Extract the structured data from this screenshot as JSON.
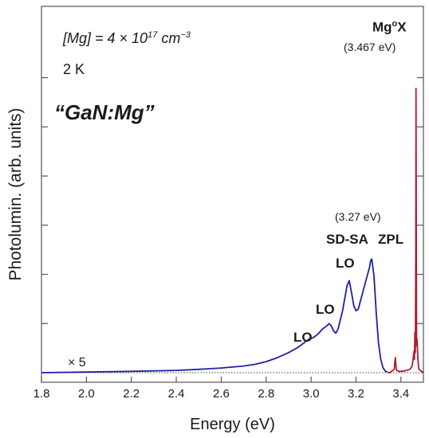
{
  "chart_data": {
    "type": "line",
    "xlabel": "Energy (eV)",
    "ylabel": "Photolumin. (arb. units)",
    "xlim": [
      1.8,
      3.5
    ],
    "ylim": [
      0,
      1
    ],
    "x_ticks": [
      {
        "value": 1.8,
        "label": "1.8"
      },
      {
        "value": 2.0,
        "label": "2.0"
      },
      {
        "value": 2.2,
        "label": "2.2"
      },
      {
        "value": 2.4,
        "label": "2.4"
      },
      {
        "value": 2.6,
        "label": "2.6"
      },
      {
        "value": 2.8,
        "label": "2.8"
      },
      {
        "value": 3.0,
        "label": "3.0"
      },
      {
        "value": 3.2,
        "label": "3.2"
      },
      {
        "value": 3.4,
        "label": "3.4"
      }
    ],
    "y_ticks_unlabeled": [
      0.147,
      0.294,
      0.441,
      0.588,
      0.735,
      0.882
    ],
    "baseline": 0.0,
    "series": [
      {
        "color": "#1f1fa8",
        "x": [
          1.8,
          2.0,
          2.2,
          2.4,
          2.5,
          2.6,
          2.7,
          2.75,
          2.8,
          2.85,
          2.9,
          2.94,
          2.97,
          2.99,
          3.01,
          3.03,
          3.05,
          3.07,
          3.08,
          3.09,
          3.1,
          3.11,
          3.12,
          3.14,
          3.16,
          3.17,
          3.18,
          3.19,
          3.2,
          3.21,
          3.22,
          3.24,
          3.26,
          3.265,
          3.27,
          3.28,
          3.29,
          3.3,
          3.31,
          3.32,
          3.33,
          3.34
        ],
        "y": [
          0.0,
          0.002,
          0.004,
          0.007,
          0.01,
          0.014,
          0.02,
          0.025,
          0.033,
          0.045,
          0.06,
          0.075,
          0.09,
          0.1,
          0.105,
          0.115,
          0.13,
          0.14,
          0.147,
          0.14,
          0.125,
          0.118,
          0.13,
          0.185,
          0.26,
          0.275,
          0.24,
          0.2,
          0.185,
          0.19,
          0.215,
          0.265,
          0.315,
          0.335,
          0.34,
          0.29,
          0.18,
          0.09,
          0.04,
          0.015,
          0.005,
          0.002
        ]
      },
      {
        "color": "#b01c2e",
        "x": [
          3.34,
          3.35,
          3.36,
          3.37,
          3.372,
          3.375,
          3.378,
          3.38,
          3.39,
          3.4,
          3.42,
          3.44,
          3.45,
          3.455,
          3.458,
          3.46,
          3.462,
          3.464,
          3.466,
          3.467,
          3.468,
          3.469,
          3.47,
          3.472,
          3.475,
          3.478,
          3.48,
          3.49,
          3.5
        ],
        "y": [
          0.0,
          0.0,
          0.005,
          0.01,
          0.025,
          0.045,
          0.02,
          0.008,
          0.004,
          0.004,
          0.006,
          0.01,
          0.02,
          0.045,
          0.065,
          0.04,
          0.12,
          0.06,
          0.35,
          0.85,
          0.5,
          0.18,
          0.08,
          0.1,
          0.045,
          0.02,
          0.01,
          0.005,
          0.0
        ]
      }
    ],
    "annotations": [
      {
        "text": "[Mg] = 4 × 10",
        "sup": "17",
        "text2": " cm",
        "sup2": "−3"
      },
      {
        "text": "2 K"
      },
      {
        "text": "“GaN:Mg”"
      },
      {
        "text": "Mg",
        "sup": "o",
        "text2": "X"
      },
      {
        "text": "(3.467 eV)"
      },
      {
        "text": "(3.27 eV)"
      },
      {
        "text": "SD-SA"
      },
      {
        "text": "ZPL"
      },
      {
        "text": "LO"
      },
      {
        "text": "LO"
      },
      {
        "text": "LO"
      },
      {
        "text": "× 5"
      }
    ],
    "grid": false,
    "colors": {
      "axis": "#555555",
      "text": "#1a1a1a",
      "baseline": "#444444"
    }
  }
}
